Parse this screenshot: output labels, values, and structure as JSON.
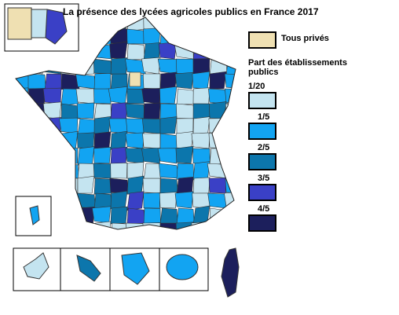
{
  "title": "La présence des lycées agricoles publics en France 2017",
  "legend": {
    "private": {
      "label": "Tous privés",
      "color": "#efe0b2"
    },
    "heading": "Part des établissements publics",
    "classes": [
      {
        "label": "1/20",
        "color": "#c4e4f0"
      },
      {
        "label": "1/5",
        "color": "#12a4f2"
      },
      {
        "label": "2/5",
        "color": "#0c76ac"
      },
      {
        "label": "3/5",
        "color": "#3a40c6"
      },
      {
        "label": "4/5",
        "color": "#1c1f5c"
      }
    ]
  }
}
